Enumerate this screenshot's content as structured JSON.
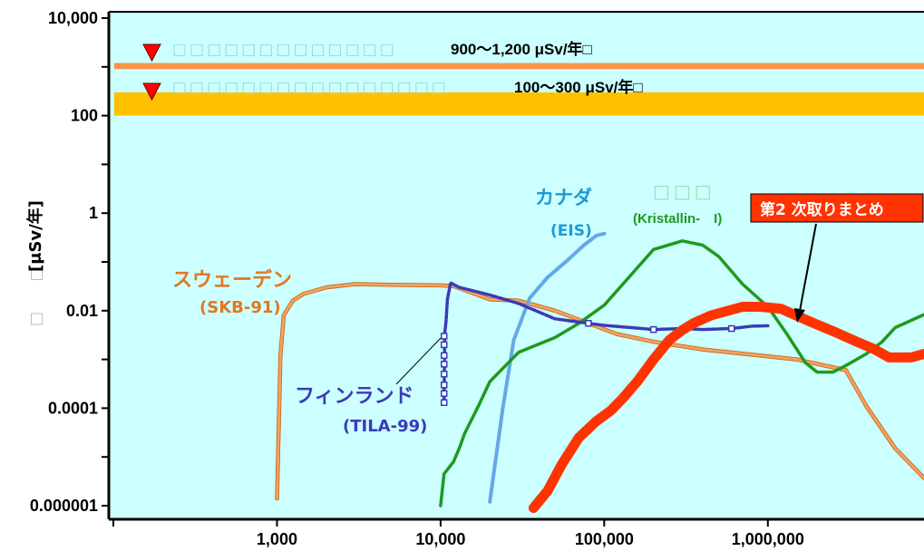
{
  "chart_data": {
    "type": "line",
    "title": "",
    "xlabel": "",
    "ylabel": "[μSv/年]",
    "ylabel_prefix_glyphs": "□ □",
    "x_scale": "log",
    "y_scale": "log",
    "xlim": [
      100,
      9000000
    ],
    "ylim": [
      1e-06,
      10000
    ],
    "grid": false,
    "x_ticks": [
      {
        "value": 1000,
        "label": "1,000"
      },
      {
        "value": 10000,
        "label": "10,000"
      },
      {
        "value": 100000,
        "label": "100,000"
      },
      {
        "value": 1000000,
        "label": "1,000,000"
      }
    ],
    "y_ticks": [
      {
        "value": 10000,
        "label": "10,000"
      },
      {
        "value": 100,
        "label": "100"
      },
      {
        "value": 1,
        "label": "1"
      },
      {
        "value": 0.01,
        "label": "0.01"
      },
      {
        "value": 0.0001,
        "label": "0.0001"
      },
      {
        "value": 1e-06,
        "label": "0.000001"
      }
    ],
    "bands": [
      {
        "name": "□□□□□□□□□□□□□",
        "range_label": "900〜1,200 μSv/年□",
        "ymin": 900,
        "ymax": 1200,
        "color": "#f79646"
      },
      {
        "name": "□□□□□□□□□□□□□□□□",
        "range_label": "100〜300 μSv/年□",
        "ymin": 100,
        "ymax": 300,
        "color": "#ffc000"
      }
    ],
    "series": [
      {
        "name": "スウェーデン",
        "sub": "(SKB-91)",
        "color": "#f2a15f",
        "width": 3,
        "points": [
          [
            1000,
            1.4e-06
          ],
          [
            1050,
            0.0012
          ],
          [
            1100,
            0.008
          ],
          [
            1250,
            0.016
          ],
          [
            1450,
            0.022
          ],
          [
            2000,
            0.03
          ],
          [
            3000,
            0.035
          ],
          [
            5000,
            0.034
          ],
          [
            10000,
            0.033
          ],
          [
            12000,
            0.032
          ],
          [
            20000,
            0.017
          ],
          [
            30000,
            0.016
          ],
          [
            50000,
            0.01
          ],
          [
            80000,
            0.0055
          ],
          [
            120000,
            0.0033
          ],
          [
            200000,
            0.0023
          ],
          [
            400000,
            0.0016
          ],
          [
            800000,
            0.00125
          ],
          [
            1500000,
            0.001
          ],
          [
            3000000,
            0.0006
          ],
          [
            4000000,
            0.00011
          ],
          [
            6000000,
            1.5e-05
          ],
          [
            9000000,
            3.7e-06
          ]
        ]
      },
      {
        "name": "カナダ",
        "sub": "(EIS)",
        "color": "#64a8e8",
        "width": 4,
        "points": [
          [
            20000,
            1.2e-06
          ],
          [
            24000,
            0.0001
          ],
          [
            28000,
            0.0025
          ],
          [
            35000,
            0.018
          ],
          [
            45000,
            0.048
          ],
          [
            60000,
            0.11
          ],
          [
            75000,
            0.22
          ],
          [
            90000,
            0.35
          ],
          [
            100000,
            0.38
          ]
        ]
      },
      {
        "name": "□□□",
        "sub": "(Kristallin-　I)",
        "color": "#1e9a1e",
        "width": 3.5,
        "points": [
          [
            10000,
            1e-06
          ],
          [
            10500,
            4.5e-06
          ],
          [
            12000,
            8e-06
          ],
          [
            13000,
            1.5e-05
          ],
          [
            14000,
            3e-05
          ],
          [
            17000,
            0.00011
          ],
          [
            20000,
            0.00035
          ],
          [
            30000,
            0.0014
          ],
          [
            50000,
            0.0028
          ],
          [
            70000,
            0.0055
          ],
          [
            100000,
            0.013
          ],
          [
            150000,
            0.06
          ],
          [
            200000,
            0.18
          ],
          [
            300000,
            0.27
          ],
          [
            400000,
            0.22
          ],
          [
            500000,
            0.13
          ],
          [
            700000,
            0.035
          ],
          [
            1000000,
            0.012
          ],
          [
            1300000,
            0.0034
          ],
          [
            1700000,
            0.00085
          ],
          [
            2000000,
            0.00055
          ],
          [
            2500000,
            0.00055
          ],
          [
            3000000,
            0.00075
          ],
          [
            4000000,
            0.0013
          ],
          [
            5000000,
            0.0023
          ],
          [
            6000000,
            0.0045
          ],
          [
            9000000,
            0.0083
          ]
        ]
      },
      {
        "name": "フィンランド",
        "sub": "(TILA-99)",
        "color": "#3a3ab8",
        "width": 3.5,
        "points": [
          [
            10500,
            0.00012
          ],
          [
            10600,
            0.0035
          ],
          [
            10800,
            0.006
          ],
          [
            11000,
            0.017
          ],
          [
            11500,
            0.037
          ],
          [
            13000,
            0.03
          ],
          [
            20000,
            0.021
          ],
          [
            30000,
            0.014
          ],
          [
            50000,
            0.0068
          ],
          [
            80000,
            0.0055
          ],
          [
            100000,
            0.005
          ],
          [
            200000,
            0.0041
          ],
          [
            300000,
            0.0043
          ],
          [
            400000,
            0.0041
          ],
          [
            600000,
            0.0043
          ],
          [
            800000,
            0.0048
          ],
          [
            1000000,
            0.0049
          ]
        ]
      },
      {
        "name": "第2 次取りまとめ",
        "sub": "",
        "color": "#ff3300",
        "width": 11,
        "points": [
          [
            37000,
            9e-07
          ],
          [
            45000,
            2e-06
          ],
          [
            55000,
            7e-06
          ],
          [
            70000,
            2.5e-05
          ],
          [
            90000,
            5.5e-05
          ],
          [
            110000,
            9e-05
          ],
          [
            130000,
            0.00016
          ],
          [
            160000,
            0.00036
          ],
          [
            200000,
            0.001
          ],
          [
            250000,
            0.0025
          ],
          [
            300000,
            0.004
          ],
          [
            350000,
            0.0055
          ],
          [
            450000,
            0.008
          ],
          [
            700000,
            0.012
          ],
          [
            900000,
            0.012
          ],
          [
            1200000,
            0.011
          ],
          [
            1800000,
            0.006
          ],
          [
            2500000,
            0.0038
          ],
          [
            3500000,
            0.0023
          ],
          [
            4500000,
            0.0016
          ],
          [
            5500000,
            0.0011
          ],
          [
            7500000,
            0.0011
          ],
          [
            9000000,
            0.0013
          ]
        ]
      }
    ]
  }
}
